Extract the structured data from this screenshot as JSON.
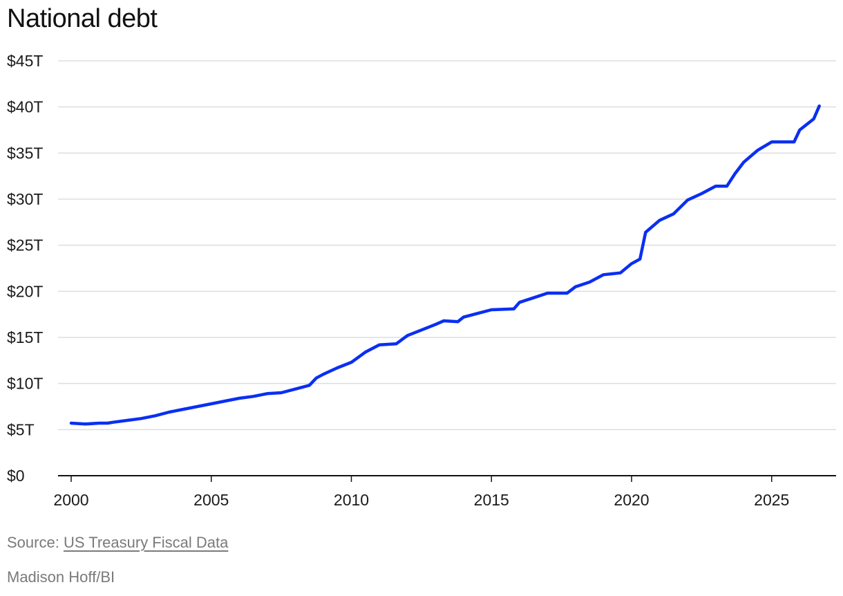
{
  "chart_data": {
    "type": "line",
    "title": "National debt",
    "xlabel": "",
    "ylabel": "",
    "xlim": [
      2000,
      2027.2
    ],
    "ylim": [
      0,
      45
    ],
    "yticks": [
      0,
      5,
      10,
      15,
      20,
      25,
      30,
      35,
      40,
      45
    ],
    "ytick_labels": [
      "$0",
      "$5T",
      "$10T",
      "$15T",
      "$20T",
      "$25T",
      "$30T",
      "$35T",
      "$40T",
      "$45T"
    ],
    "xticks": [
      2000,
      2005,
      2010,
      2015,
      2020,
      2025
    ],
    "xtick_labels": [
      "2000",
      "2005",
      "2010",
      "2015",
      "2020",
      "2025"
    ],
    "grid": "horizontal",
    "color": "#0a2ff2",
    "series": [
      {
        "x": [
          2000.0,
          2000.5,
          2001.0,
          2001.3,
          2001.5,
          2002.0,
          2002.5,
          2003.0,
          2003.5,
          2004.0,
          2004.5,
          2005.0,
          2005.5,
          2006.0,
          2006.5,
          2007.0,
          2007.5,
          2008.0,
          2008.5,
          2008.75,
          2009.0,
          2009.5,
          2010.0,
          2010.5,
          2011.0,
          2011.6,
          2012.0,
          2012.5,
          2013.0,
          2013.3,
          2013.8,
          2014.0,
          2014.5,
          2015.0,
          2015.8,
          2016.0,
          2016.5,
          2017.0,
          2017.7,
          2018.0,
          2018.5,
          2019.0,
          2019.6,
          2020.0,
          2020.3,
          2020.5,
          2021.0,
          2021.5,
          2022.0,
          2022.5,
          2023.0,
          2023.4,
          2023.7,
          2024.0,
          2024.5,
          2025.0,
          2025.5,
          2025.8,
          2026.0,
          2026.5,
          2026.7
        ],
        "values": [
          5.7,
          5.6,
          5.7,
          5.7,
          5.8,
          6.0,
          6.2,
          6.5,
          6.9,
          7.2,
          7.5,
          7.8,
          8.1,
          8.4,
          8.6,
          8.9,
          9.0,
          9.4,
          9.8,
          10.6,
          11.0,
          11.7,
          12.3,
          13.4,
          14.2,
          14.3,
          15.2,
          15.8,
          16.4,
          16.8,
          16.7,
          17.2,
          17.6,
          18.0,
          18.1,
          18.8,
          19.3,
          19.8,
          19.8,
          20.5,
          21.0,
          21.8,
          22.0,
          23.0,
          23.5,
          26.4,
          27.7,
          28.4,
          29.9,
          30.6,
          31.4,
          31.4,
          32.8,
          34.0,
          35.3,
          36.2,
          36.2,
          36.2,
          37.5,
          38.7,
          40.1
        ]
      }
    ]
  },
  "footer": {
    "source_prefix": "Source: ",
    "source_link": "US Treasury Fiscal Data",
    "credit": "Madison Hoff/BI"
  }
}
